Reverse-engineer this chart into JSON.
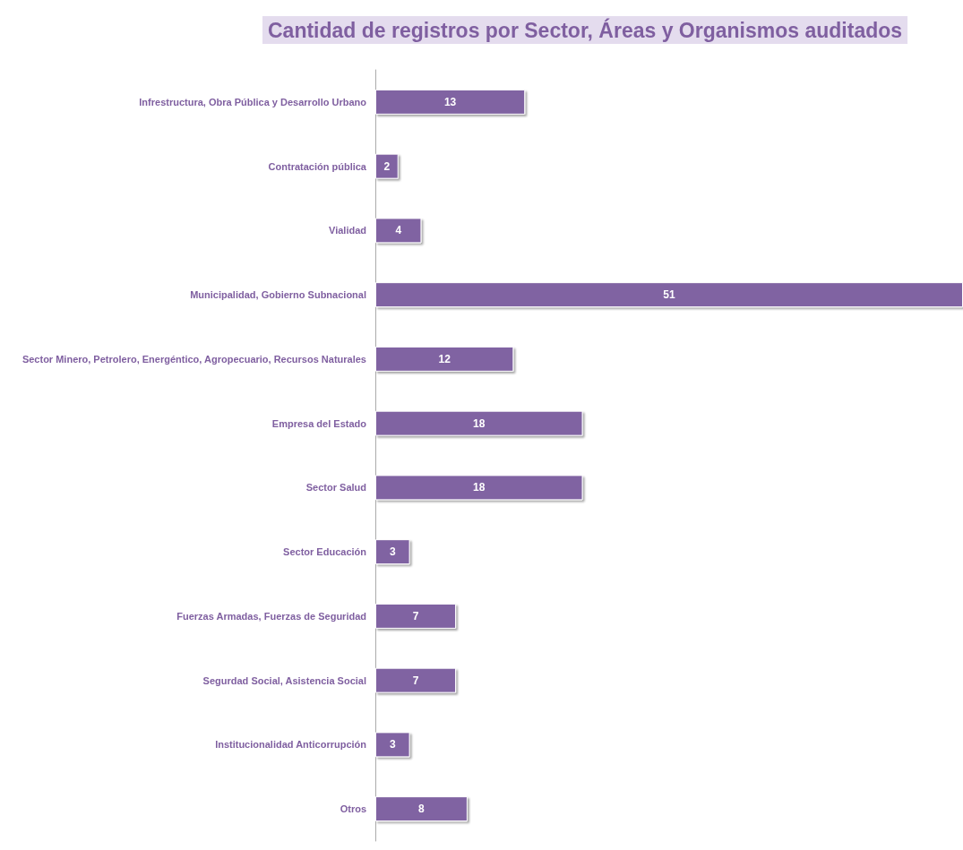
{
  "chart_data": {
    "type": "bar",
    "orientation": "horizontal",
    "title": "Cantidad de registros por Sector, Áreas y Organismos auditados",
    "categories": [
      "Infrestructura, Obra Pública y Desarrollo Urbano",
      "Contratación pública",
      "Vialidad",
      "Municipalidad, Gobierno Subnacional",
      "Sector Minero, Petrolero, Energéntico, Agropecuario, Recursos Naturales",
      "Empresa del Estado",
      "Sector Salud",
      "Sector Educación",
      "Fuerzas Armadas, Fuerzas de Seguridad",
      "Segurdad Social, Asistencia Social",
      "Institucionalidad Anticorrupción",
      "Otros"
    ],
    "values": [
      13,
      2,
      4,
      51,
      12,
      18,
      18,
      3,
      7,
      7,
      3,
      8
    ],
    "color": "#8064a2",
    "data_labels": true,
    "grid": false,
    "tick_labels": "y"
  }
}
